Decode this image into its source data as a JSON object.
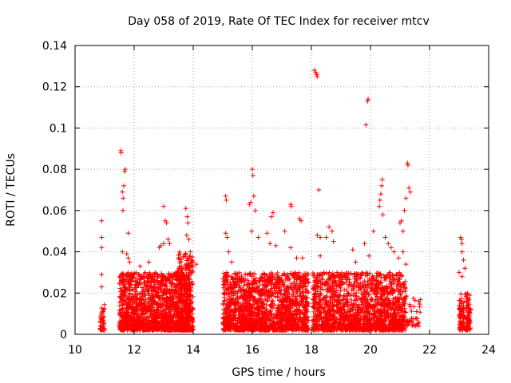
{
  "chart_data": {
    "type": "scatter",
    "title": "Day 058 of 2019, Rate Of TEC Index for receiver mtcv",
    "xlabel": "GPS time / hours",
    "ylabel": "ROTI / TECUs",
    "xlim": [
      10,
      24
    ],
    "ylim": [
      0,
      0.14
    ],
    "xticks": [
      "10",
      "12",
      "14",
      "16",
      "18",
      "20",
      "22",
      "24"
    ],
    "yticks": [
      "0",
      "0.02",
      "0.04",
      "0.06",
      "0.08",
      "0.1",
      "0.12",
      "0.14"
    ],
    "grid": true,
    "marker": "plus",
    "color": "#ff0000",
    "clusters": [
      {
        "x_range": [
          10.85,
          11.0
        ],
        "y_range": [
          0.002,
          0.015
        ],
        "count": 40
      },
      {
        "x_range": [
          11.5,
          13.9
        ],
        "y_range": [
          0.002,
          0.03
        ],
        "count": 1500
      },
      {
        "x_range": [
          13.5,
          14.0
        ],
        "y_range": [
          0.002,
          0.04
        ],
        "count": 250
      },
      {
        "x_range": [
          15.0,
          17.9
        ],
        "y_range": [
          0.002,
          0.03
        ],
        "count": 1600
      },
      {
        "x_range": [
          18.05,
          21.2
        ],
        "y_range": [
          0.002,
          0.03
        ],
        "count": 1600
      },
      {
        "x_range": [
          21.2,
          21.7
        ],
        "y_range": [
          0.004,
          0.02
        ],
        "count": 40
      },
      {
        "x_range": [
          23.0,
          23.4
        ],
        "y_range": [
          0.002,
          0.02
        ],
        "count": 140
      }
    ],
    "points": [
      [
        10.9,
        0.055
      ],
      [
        10.9,
        0.047
      ],
      [
        10.9,
        0.042
      ],
      [
        10.9,
        0.029
      ],
      [
        10.9,
        0.023
      ],
      [
        11.55,
        0.089
      ],
      [
        11.56,
        0.088
      ],
      [
        11.6,
        0.069
      ],
      [
        11.63,
        0.066
      ],
      [
        11.65,
        0.072
      ],
      [
        11.68,
        0.079
      ],
      [
        11.7,
        0.08
      ],
      [
        11.62,
        0.06
      ],
      [
        11.8,
        0.049
      ],
      [
        11.6,
        0.04
      ],
      [
        11.75,
        0.039
      ],
      [
        11.8,
        0.037
      ],
      [
        11.85,
        0.035
      ],
      [
        12.2,
        0.033
      ],
      [
        12.5,
        0.035
      ],
      [
        12.7,
        0.028
      ],
      [
        12.85,
        0.042
      ],
      [
        12.9,
        0.043
      ],
      [
        13.0,
        0.044
      ],
      [
        13.0,
        0.062
      ],
      [
        13.05,
        0.055
      ],
      [
        13.1,
        0.054
      ],
      [
        13.15,
        0.046
      ],
      [
        13.2,
        0.044
      ],
      [
        13.6,
        0.033
      ],
      [
        13.75,
        0.061
      ],
      [
        13.8,
        0.057
      ],
      [
        13.82,
        0.054
      ],
      [
        13.78,
        0.048
      ],
      [
        13.85,
        0.046
      ],
      [
        13.9,
        0.04
      ],
      [
        13.95,
        0.035
      ],
      [
        14.1,
        0.034
      ],
      [
        15.1,
        0.067
      ],
      [
        15.12,
        0.065
      ],
      [
        15.1,
        0.049
      ],
      [
        15.15,
        0.047
      ],
      [
        15.2,
        0.04
      ],
      [
        15.3,
        0.035
      ],
      [
        15.9,
        0.063
      ],
      [
        15.95,
        0.064
      ],
      [
        16.0,
        0.08
      ],
      [
        16.02,
        0.077
      ],
      [
        16.05,
        0.067
      ],
      [
        16.1,
        0.06
      ],
      [
        15.98,
        0.05
      ],
      [
        16.2,
        0.047
      ],
      [
        16.5,
        0.049
      ],
      [
        16.6,
        0.044
      ],
      [
        16.65,
        0.057
      ],
      [
        16.7,
        0.059
      ],
      [
        16.8,
        0.043
      ],
      [
        17.1,
        0.05
      ],
      [
        17.3,
        0.063
      ],
      [
        17.32,
        0.062
      ],
      [
        17.6,
        0.056
      ],
      [
        17.65,
        0.055
      ],
      [
        17.3,
        0.042
      ],
      [
        17.5,
        0.037
      ],
      [
        17.7,
        0.037
      ],
      [
        18.1,
        0.128
      ],
      [
        18.15,
        0.127
      ],
      [
        18.18,
        0.126
      ],
      [
        18.2,
        0.125
      ],
      [
        18.25,
        0.07
      ],
      [
        18.2,
        0.048
      ],
      [
        18.3,
        0.047
      ],
      [
        18.5,
        0.047
      ],
      [
        18.6,
        0.052
      ],
      [
        18.7,
        0.05
      ],
      [
        18.75,
        0.045
      ],
      [
        18.3,
        0.038
      ],
      [
        19.4,
        0.041
      ],
      [
        19.5,
        0.035
      ],
      [
        19.8,
        0.044
      ],
      [
        19.85,
        0.1015
      ],
      [
        19.9,
        0.113
      ],
      [
        19.92,
        0.114
      ],
      [
        19.95,
        0.038
      ],
      [
        20.1,
        0.05
      ],
      [
        20.3,
        0.062
      ],
      [
        20.32,
        0.065
      ],
      [
        20.35,
        0.068
      ],
      [
        20.38,
        0.072
      ],
      [
        20.4,
        0.075
      ],
      [
        20.42,
        0.058
      ],
      [
        20.5,
        0.047
      ],
      [
        20.6,
        0.044
      ],
      [
        20.7,
        0.042
      ],
      [
        20.8,
        0.04
      ],
      [
        20.95,
        0.037
      ],
      [
        21.0,
        0.054
      ],
      [
        21.05,
        0.055
      ],
      [
        21.1,
        0.05
      ],
      [
        21.15,
        0.06
      ],
      [
        21.2,
        0.066
      ],
      [
        21.25,
        0.083
      ],
      [
        21.27,
        0.082
      ],
      [
        21.3,
        0.071
      ],
      [
        21.35,
        0.069
      ],
      [
        21.1,
        0.04
      ],
      [
        21.2,
        0.034
      ],
      [
        23.05,
        0.047
      ],
      [
        23.08,
        0.046
      ],
      [
        23.1,
        0.044
      ],
      [
        23.1,
        0.04
      ],
      [
        23.15,
        0.036
      ],
      [
        23.2,
        0.032
      ],
      [
        23.0,
        0.03
      ],
      [
        23.1,
        0.028
      ]
    ]
  }
}
